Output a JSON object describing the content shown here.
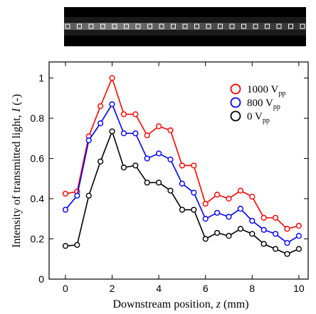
{
  "chart_data": {
    "type": "line",
    "title": "",
    "xlabel": "Downstream position, ",
    "xlabel_var": "z",
    "xlabel_unit": " (mm)",
    "ylabel": "Intensity of transmitted light, ",
    "ylabel_var": "I",
    "ylabel_unit": " (-)",
    "xlim": [
      -0.7,
      10.4
    ],
    "ylim": [
      0,
      1.08
    ],
    "xticks": [
      0,
      2,
      4,
      6,
      8,
      10
    ],
    "yticks": [
      0,
      0.2,
      0.4,
      0.6,
      0.8,
      1
    ],
    "ytick_labels": [
      "0",
      "0.2",
      "0.4",
      "0.6",
      "0.8",
      "1"
    ],
    "x": [
      0,
      0.5,
      1,
      1.5,
      2,
      2.5,
      3,
      3.5,
      4,
      4.5,
      5,
      5.5,
      6,
      6.5,
      7,
      7.5,
      8,
      8.5,
      9,
      9.5,
      10
    ],
    "legend_position": "top-right",
    "series": [
      {
        "name": "1000 V",
        "name_sub": "pp",
        "color": "#ff0000",
        "values": [
          0.425,
          0.435,
          0.71,
          0.86,
          1.0,
          0.82,
          0.82,
          0.715,
          0.76,
          0.74,
          0.565,
          0.565,
          0.375,
          0.42,
          0.4,
          0.44,
          0.41,
          0.305,
          0.305,
          0.25,
          0.265
        ]
      },
      {
        "name": "800 V",
        "name_sub": "pp",
        "color": "#0000ff",
        "values": [
          0.345,
          0.415,
          0.69,
          0.775,
          0.87,
          0.725,
          0.725,
          0.6,
          0.625,
          0.595,
          0.475,
          0.43,
          0.3,
          0.33,
          0.31,
          0.35,
          0.29,
          0.245,
          0.225,
          0.18,
          0.215
        ]
      },
      {
        "name": "0 V",
        "name_sub": "pp",
        "color": "#000000",
        "values": [
          0.165,
          0.17,
          0.415,
          0.585,
          0.735,
          0.555,
          0.565,
          0.48,
          0.48,
          0.44,
          0.345,
          0.345,
          0.2,
          0.23,
          0.215,
          0.25,
          0.225,
          0.175,
          0.15,
          0.125,
          0.15
        ]
      }
    ]
  },
  "photo": {
    "marker_count": 21
  }
}
